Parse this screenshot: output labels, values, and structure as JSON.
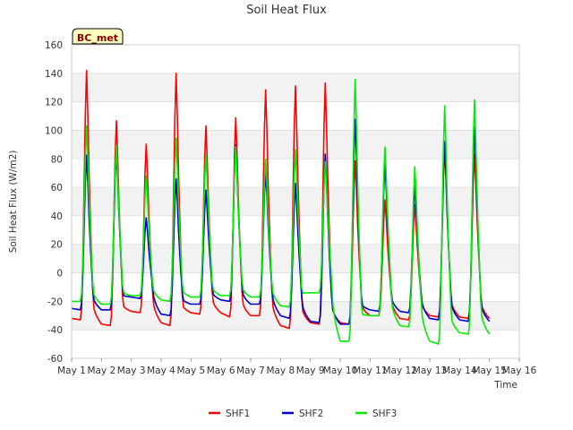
{
  "chart_data": {
    "type": "line",
    "title": "Soil Heat Flux",
    "xlabel": "Time",
    "ylabel": "Soil Heat Flux (W/m2)",
    "ylim": [
      -60,
      160
    ],
    "yticks": [
      -60,
      -40,
      -20,
      0,
      20,
      40,
      60,
      80,
      100,
      120,
      140,
      160
    ],
    "xlim_days": [
      1,
      16
    ],
    "xtick_labels": [
      "May 1",
      "May 2",
      "May 3",
      "May 4",
      "May 5",
      "May 6",
      "May 7",
      "May 8",
      "May 9",
      "May 10",
      "May 11",
      "May 12",
      "May 13",
      "May 14",
      "May 15",
      "May 16"
    ],
    "badge": "BC_met",
    "legend_placement": "bottom-center",
    "series": [
      {
        "name": "SHF1",
        "color": "#ff0000",
        "days": [
          "May 1",
          "May 2",
          "May 3",
          "May 4",
          "May 5",
          "May 6",
          "May 7",
          "May 8",
          "May 9",
          "May 10",
          "May 11",
          "May 12",
          "May 13",
          "May 14"
        ],
        "min": [
          -33,
          -37,
          -28,
          -37,
          -29,
          -31,
          -30,
          -39,
          -36,
          -36,
          -30,
          -33,
          -31,
          -32
        ],
        "peak": [
          146,
          110,
          93,
          144,
          106,
          112,
          132,
          135,
          137,
          81,
          53,
          50,
          90,
          86
        ],
        "pre": [
          -32,
          -36,
          -27,
          -35,
          -28,
          -28,
          -30,
          -37,
          -35,
          -35,
          -30,
          -32,
          -30,
          -31
        ]
      },
      {
        "name": "SHF2",
        "color": "#0000cc",
        "days": [
          "May 1",
          "May 2",
          "May 3",
          "May 4",
          "May 5",
          "May 6",
          "May 7",
          "May 8",
          "May 9",
          "May 10",
          "May 11",
          "May 12",
          "May 13",
          "May 14"
        ],
        "min": [
          -26,
          -26,
          -18,
          -30,
          -22,
          -20,
          -22,
          -32,
          -35,
          -36,
          -27,
          -28,
          -33,
          -34
        ],
        "peak": [
          85,
          88,
          40,
          68,
          60,
          92,
          73,
          65,
          86,
          111,
          79,
          63,
          95,
          105
        ],
        "pre": [
          -25,
          -26,
          -17,
          -29,
          -22,
          -19,
          -22,
          -30,
          -34,
          -36,
          -26,
          -27,
          -32,
          -33
        ]
      },
      {
        "name": "SHF3",
        "color": "#00ee00",
        "days": [
          "May 1",
          "May 2",
          "May 3",
          "May 4",
          "May 5",
          "May 6",
          "May 7",
          "May 8",
          "May 9",
          "May 10",
          "May 11",
          "May 12",
          "May 13",
          "May 14"
        ],
        "min": [
          -20,
          -22,
          -16,
          -20,
          -17,
          -16,
          -17,
          -24,
          -14,
          -48,
          -30,
          -38,
          -50,
          -43
        ],
        "peak": [
          106,
          92,
          70,
          97,
          85,
          91,
          82,
          89,
          80,
          140,
          91,
          77,
          121,
          125
        ],
        "pre": [
          -20,
          -22,
          -16,
          -19,
          -17,
          -16,
          -17,
          -23,
          -14,
          -48,
          -30,
          -37,
          -48,
          -42
        ]
      }
    ]
  }
}
